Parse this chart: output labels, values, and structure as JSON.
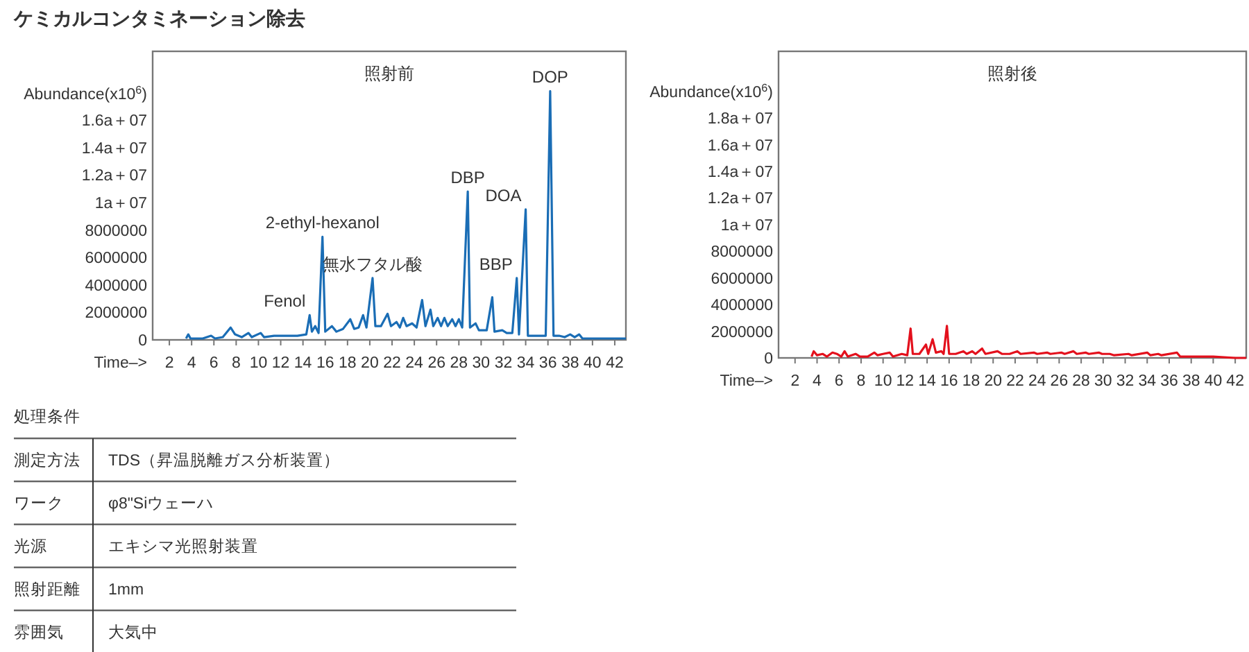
{
  "chart_data": [
    {
      "type": "line",
      "title": "ケミカルコンタミネーション除去",
      "subtitle": "照射前",
      "xlabel": "Time–>",
      "ylabel": "Abundance(x10$^{6}$)",
      "xlim": [
        0.5,
        43
      ],
      "xticks": [
        2,
        4,
        6,
        8,
        10,
        12,
        14,
        16,
        18,
        20,
        22,
        24,
        26,
        28,
        30,
        32,
        34,
        36,
        38,
        40,
        42
      ],
      "ylim": [
        0,
        21000000
      ],
      "yticks": [
        0,
        2000000,
        4000000,
        6000000,
        8000000,
        {
          "value": 10000000,
          "label": "1a＋07"
        },
        {
          "value": 12000000,
          "label": "1.2a＋07"
        },
        {
          "value": 14000000,
          "label": "1.4a＋07"
        },
        {
          "value": 16000000,
          "label": "1.6a＋07"
        }
      ],
      "grid": false,
      "marker": "none",
      "line_style": "solid",
      "series": [
        {
          "color": "#1a6db5",
          "x": [
            3.5,
            3.7,
            3.9,
            5.0,
            5.75,
            6.1,
            6.8,
            7.5,
            7.9,
            8.5,
            9.1,
            9.4,
            10.2,
            10.5,
            11.4,
            12.0,
            12.6,
            13.5,
            14.3,
            14.6,
            14.8,
            15.1,
            15.4,
            15.75,
            16.0,
            16.6,
            17.0,
            17.6,
            18.25,
            18.6,
            19.0,
            19.4,
            19.7,
            20.25,
            20.5,
            21.0,
            21.6,
            21.9,
            22.4,
            22.7,
            23.0,
            23.3,
            23.8,
            24.2,
            24.7,
            25.0,
            25.45,
            25.7,
            26.1,
            26.4,
            26.7,
            27.0,
            27.4,
            27.7,
            28.0,
            28.3,
            28.8,
            29.0,
            29.5,
            29.8,
            30.5,
            31.0,
            31.2,
            31.9,
            32.3,
            32.8,
            33.2,
            33.4,
            34.0,
            34.2,
            35.0,
            35.8,
            36.2,
            36.5,
            37.0,
            37.5,
            38.0,
            38.4,
            38.8,
            39.1,
            40.0,
            42.0,
            43.0
          ],
          "values": [
            100000,
            400000,
            100000,
            100000,
            300000,
            100000,
            200000,
            900000,
            400000,
            200000,
            500000,
            200000,
            500000,
            200000,
            300000,
            300000,
            300000,
            300000,
            400000,
            1800000,
            600000,
            1000000,
            500000,
            7500000,
            600000,
            1000000,
            600000,
            800000,
            1500000,
            800000,
            900000,
            1800000,
            900000,
            4500000,
            1000000,
            1000000,
            1900000,
            1000000,
            1300000,
            900000,
            1600000,
            1000000,
            1200000,
            900000,
            2900000,
            1000000,
            2200000,
            1000000,
            1600000,
            1000000,
            1600000,
            1000000,
            1500000,
            1000000,
            1500000,
            900000,
            10800000,
            900000,
            1200000,
            700000,
            700000,
            3100000,
            600000,
            700000,
            500000,
            500000,
            4500000,
            400000,
            9500000,
            300000,
            300000,
            300000,
            18100000,
            300000,
            300000,
            200000,
            400000,
            200000,
            400000,
            100000,
            100000,
            100000,
            100000
          ]
        }
      ],
      "annotations": [
        {
          "text": "Fenol",
          "x": 14.6,
          "y": 1800000
        },
        {
          "text": "2-ethyl-hexanol",
          "x": 15.75,
          "y": 7500000
        },
        {
          "text": "無水フタル酸",
          "x": 20.25,
          "y": 4500000
        },
        {
          "text": "DBP",
          "x": 28.8,
          "y": 10800000
        },
        {
          "text": "BBP",
          "x": 33.2,
          "y": 4500000
        },
        {
          "text": "DOA",
          "x": 34.0,
          "y": 9500000
        },
        {
          "text": "DOP",
          "x": 36.2,
          "y": 18100000
        }
      ]
    },
    {
      "type": "line",
      "title": "照射後",
      "xlabel": "Time–>",
      "ylabel": "Abundance(x10$^{6}$)",
      "xlim": [
        0.5,
        43
      ],
      "xticks": [
        2,
        4,
        6,
        8,
        10,
        12,
        14,
        16,
        18,
        20,
        22,
        24,
        26,
        28,
        30,
        32,
        34,
        36,
        38,
        40,
        42
      ],
      "ylim": [
        0,
        23000000
      ],
      "yticks": [
        0,
        2000000,
        4000000,
        6000000,
        8000000,
        {
          "value": 10000000,
          "label": "1a＋07"
        },
        {
          "value": 12000000,
          "label": "1.2a＋07"
        },
        {
          "value": 14000000,
          "label": "1.4a＋07"
        },
        {
          "value": 16000000,
          "label": "1.6a＋07"
        },
        {
          "value": 18000000,
          "label": "1.8a＋07"
        }
      ],
      "grid": false,
      "marker": "none",
      "line_style": "solid",
      "series": [
        {
          "color": "#e3101c",
          "x": [
            3.5,
            3.7,
            4.0,
            4.5,
            4.9,
            5.4,
            5.8,
            6.2,
            6.5,
            6.8,
            7.5,
            7.9,
            8.6,
            9.2,
            9.5,
            10.0,
            10.6,
            10.9,
            11.7,
            12.2,
            12.5,
            12.7,
            13.3,
            13.9,
            14.1,
            14.5,
            14.8,
            15.3,
            15.5,
            15.8,
            16.0,
            16.6,
            17.3,
            17.6,
            18.1,
            18.4,
            19.0,
            19.3,
            20.4,
            20.8,
            21.5,
            22.2,
            22.5,
            23.7,
            24.0,
            24.9,
            25.2,
            26.2,
            26.5,
            27.3,
            27.6,
            28.4,
            28.7,
            29.6,
            29.9,
            30.6,
            31.0,
            32.3,
            32.6,
            34.0,
            34.3,
            35.0,
            35.3,
            36.7,
            37.0,
            38.0,
            40.0,
            42.0,
            43.0
          ],
          "values": [
            100000,
            500000,
            200000,
            300000,
            100000,
            400000,
            300000,
            100000,
            500000,
            100000,
            300000,
            100000,
            100000,
            400000,
            200000,
            300000,
            400000,
            100000,
            300000,
            200000,
            2200000,
            300000,
            300000,
            1000000,
            300000,
            1400000,
            400000,
            500000,
            300000,
            2400000,
            300000,
            300000,
            500000,
            300000,
            500000,
            300000,
            700000,
            300000,
            500000,
            300000,
            300000,
            500000,
            300000,
            400000,
            300000,
            400000,
            300000,
            400000,
            300000,
            500000,
            300000,
            400000,
            300000,
            400000,
            300000,
            300000,
            200000,
            300000,
            200000,
            400000,
            200000,
            300000,
            200000,
            400000,
            100000,
            100000,
            100000,
            0,
            0
          ]
        }
      ]
    },
    {
      "type": "other",
      "title": "処理条件",
      "annotations": [
        "測定方法",
        "TDS（昇温脱離ガス分析装置）",
        "ワーク",
        "φ8\"Siウェーハ",
        "光源",
        "エキシマ光照射装置",
        "照射距離",
        "1mm",
        "雰囲気",
        "大気中"
      ]
    }
  ]
}
